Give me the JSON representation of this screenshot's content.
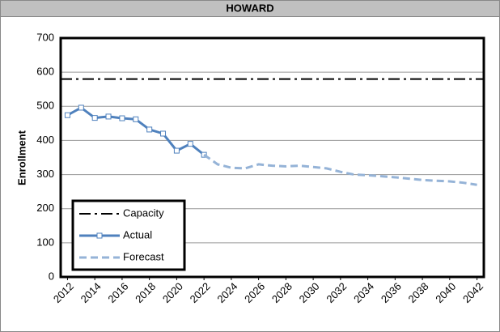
{
  "chart_data": {
    "type": "line",
    "title": "HOWARD",
    "y_label": "Enrollment",
    "xlim": [
      2011.5,
      2042.5
    ],
    "xticks": [
      2012,
      2014,
      2016,
      2018,
      2020,
      2022,
      2024,
      2026,
      2028,
      2030,
      2032,
      2034,
      2036,
      2038,
      2040,
      2042
    ],
    "ylim": [
      0,
      700
    ],
    "yticks": [
      0,
      100,
      200,
      300,
      400,
      500,
      600,
      700
    ],
    "grid": true,
    "legend": "lower left",
    "series": [
      {
        "name": "Capacity",
        "color": "#000000",
        "style": "dashdot",
        "x": [
          2011.5,
          2042.5
        ],
        "values": [
          580,
          580
        ]
      },
      {
        "name": "Actual",
        "color": "#4f81bd",
        "style": "solid",
        "markers": true,
        "x": [
          2012,
          2013,
          2014,
          2015,
          2016,
          2017,
          2018,
          2019,
          2020,
          2021,
          2022
        ],
        "values": [
          474,
          496,
          466,
          470,
          465,
          462,
          432,
          420,
          370,
          390,
          358
        ]
      },
      {
        "name": "Forecast",
        "color": "#95b3d7",
        "style": "dashed",
        "x": [
          2022,
          2023,
          2024,
          2025,
          2026,
          2027,
          2028,
          2029,
          2030,
          2031,
          2032,
          2033,
          2034,
          2035,
          2036,
          2037,
          2038,
          2039,
          2040,
          2041,
          2042
        ],
        "values": [
          358,
          330,
          320,
          318,
          330,
          326,
          324,
          326,
          322,
          318,
          308,
          300,
          298,
          295,
          292,
          288,
          284,
          282,
          280,
          276,
          270
        ]
      }
    ]
  }
}
